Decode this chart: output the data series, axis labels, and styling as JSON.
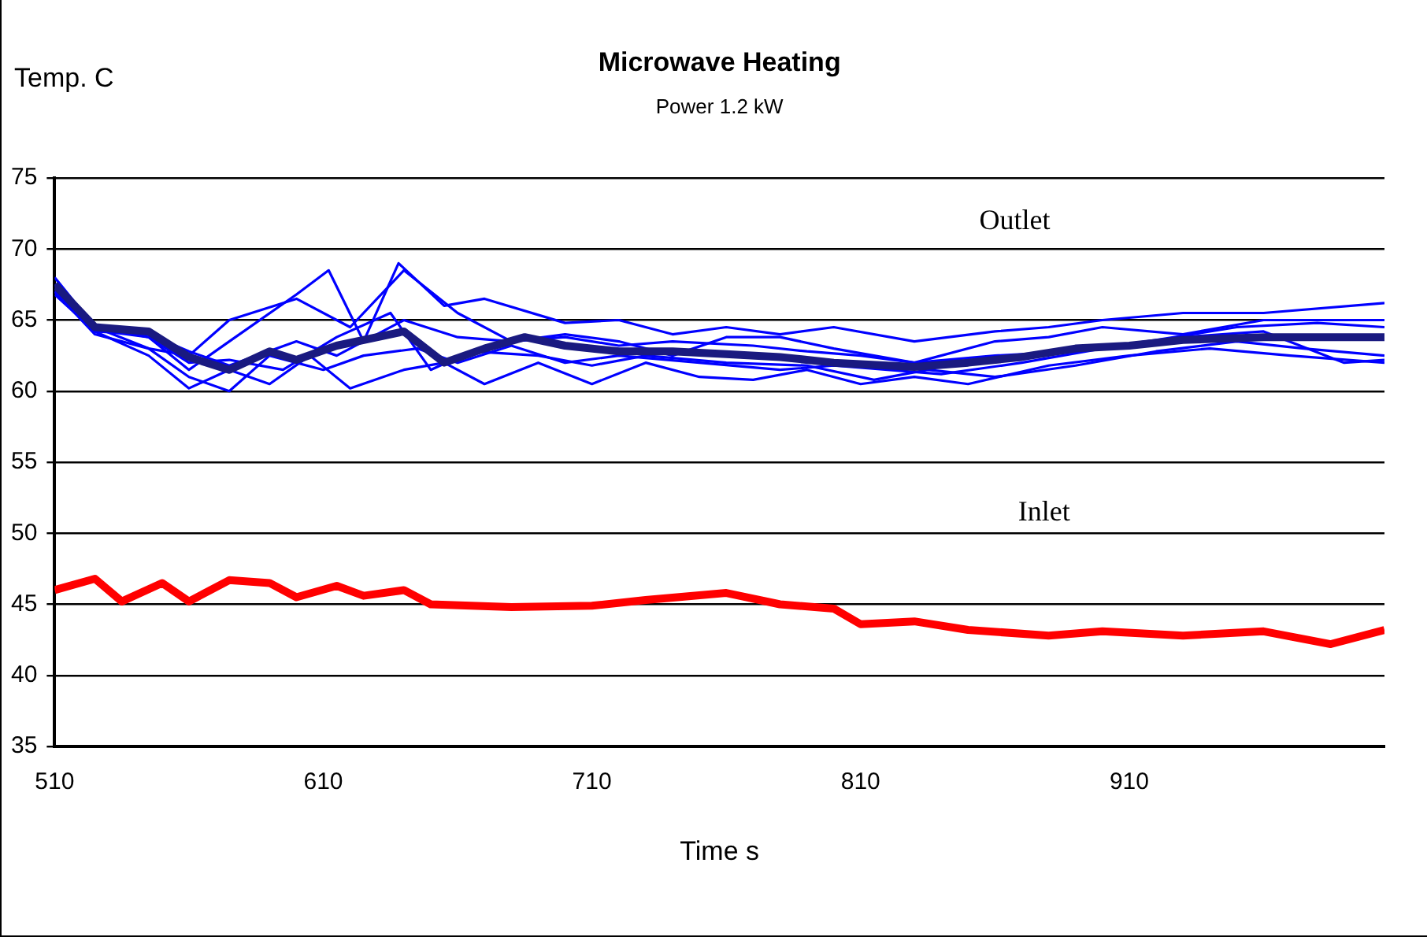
{
  "chart_data": {
    "type": "line",
    "title": "Microwave Heating",
    "subtitle": "Power 1.2 kW",
    "xlabel": "Time s",
    "ylabel": "Temp. C",
    "xlim": [
      510,
      1005
    ],
    "xticks": [
      510,
      610,
      710,
      810,
      910
    ],
    "ylim": [
      35,
      75
    ],
    "yticks": [
      35,
      40,
      45,
      50,
      55,
      60,
      65,
      70,
      75
    ],
    "grid": "y",
    "legend": false,
    "marker": "none",
    "line_style": "solid",
    "annotations": [
      "Outlet",
      "Inlet"
    ],
    "series": [
      {
        "color": "#0000ff",
        "x": [
          510,
          525,
          545,
          560,
          575,
          600,
          612,
          625,
          638,
          655,
          670,
          700,
          720,
          740,
          760,
          780,
          800,
          830,
          860,
          880,
          900,
          930,
          960,
          1005
        ],
        "values": [
          68,
          64.5,
          63.8,
          61.5,
          63.5,
          66.8,
          68.5,
          63.5,
          69,
          66,
          66.5,
          64.8,
          65,
          64,
          64.5,
          64,
          64.5,
          63.5,
          64.2,
          64.5,
          65,
          65.5,
          65.5,
          66.2
        ]
      },
      {
        "color": "#0000ff",
        "x": [
          510,
          525,
          545,
          560,
          575,
          600,
          620,
          640,
          660,
          680,
          700,
          720,
          740,
          760,
          780,
          800,
          830,
          860,
          880,
          900,
          930,
          960,
          1005
        ],
        "values": [
          67.5,
          64.5,
          63,
          62.5,
          65,
          66.5,
          64.5,
          68.5,
          65.5,
          63.5,
          64,
          63.5,
          62.5,
          63.8,
          63.8,
          63,
          62,
          63.5,
          63.8,
          64.5,
          64,
          65,
          65
        ]
      },
      {
        "color": "#0000ff",
        "x": [
          510,
          525,
          545,
          560,
          575,
          590,
          605,
          620,
          640,
          655,
          670,
          690,
          710,
          730,
          750,
          770,
          790,
          810,
          830,
          850,
          880,
          910,
          940,
          970,
          1005
        ],
        "values": [
          67,
          64.2,
          62.5,
          60.2,
          61.5,
          60.5,
          62.5,
          60.2,
          61.5,
          62,
          60.5,
          62,
          60.5,
          62,
          61,
          60.8,
          61.5,
          60.5,
          61,
          60.5,
          61.8,
          62.5,
          63,
          62.5,
          62
        ]
      },
      {
        "color": "#0000ff",
        "x": [
          510,
          525,
          545,
          560,
          575,
          590,
          610,
          625,
          645,
          660,
          680,
          700,
          720,
          750,
          780,
          800,
          820,
          840,
          870,
          900,
          930,
          960,
          990,
          1005
        ],
        "values": [
          67,
          64,
          63,
          61,
          60,
          62.5,
          61.5,
          62.5,
          63,
          62,
          63.2,
          62,
          62.5,
          62,
          61.5,
          61.8,
          61.5,
          61.2,
          62,
          63,
          63.8,
          64.2,
          62,
          62.2
        ]
      },
      {
        "color": "#0000ff",
        "x": [
          510,
          525,
          545,
          560,
          575,
          600,
          615,
          640,
          660,
          680,
          700,
          720,
          740,
          770,
          790,
          810,
          830,
          860,
          890,
          920,
          950,
          980,
          1005
        ],
        "values": [
          66.8,
          64.2,
          64,
          62.8,
          61.8,
          63.5,
          62.5,
          65,
          63.8,
          63.5,
          63.8,
          63.2,
          63.5,
          63.2,
          62.8,
          62.5,
          62,
          62.5,
          62.8,
          63.6,
          64.5,
          64.8,
          64.5
        ]
      },
      {
        "color": "#0000ff",
        "x": [
          510,
          525,
          545,
          560,
          575,
          595,
          615,
          635,
          650,
          665,
          690,
          710,
          730,
          760,
          790,
          815,
          835,
          860,
          890,
          920,
          950,
          975,
          1005
        ],
        "values": [
          67.2,
          64.3,
          63.8,
          62,
          62.2,
          61.5,
          63.8,
          65.5,
          61.5,
          62.8,
          62.5,
          61.8,
          62.5,
          62,
          61.8,
          60.8,
          61.5,
          61,
          61.8,
          62.8,
          63.5,
          63,
          62.5
        ]
      },
      {
        "color": "#1a1a80",
        "x": [
          510,
          525,
          545,
          560,
          575,
          590,
          600,
          615,
          640,
          655,
          670,
          685,
          700,
          720,
          740,
          760,
          780,
          800,
          830,
          850,
          870,
          890,
          910,
          930,
          960,
          1005
        ],
        "values": [
          67.5,
          64.5,
          64.2,
          62.4,
          61.5,
          62.8,
          62.2,
          63.2,
          64.2,
          62,
          63,
          63.8,
          63.2,
          62.8,
          62.8,
          62.6,
          62.4,
          62,
          61.7,
          62,
          62.4,
          63,
          63.2,
          63.6,
          63.8,
          63.8
        ]
      },
      {
        "color": "#ff0000",
        "x": [
          510,
          525,
          535,
          550,
          560,
          575,
          590,
          600,
          615,
          625,
          640,
          650,
          680,
          710,
          730,
          760,
          780,
          800,
          810,
          830,
          850,
          880,
          900,
          930,
          960,
          985,
          1005
        ],
        "values": [
          46,
          46.8,
          45.2,
          46.5,
          45.2,
          46.7,
          46.5,
          45.5,
          46.3,
          45.6,
          46,
          45,
          44.8,
          44.9,
          45.3,
          45.8,
          45,
          44.7,
          43.6,
          43.8,
          43.2,
          42.8,
          43.1,
          42.8,
          43.1,
          42.2,
          43.2
        ]
      }
    ]
  }
}
